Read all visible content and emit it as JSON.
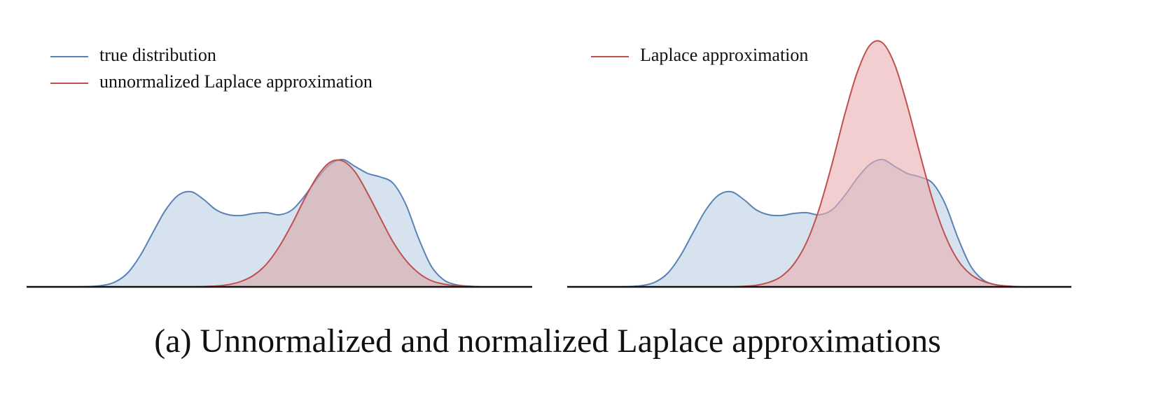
{
  "chart_data": [
    {
      "type": "area",
      "legend": "upper left",
      "x": [
        0,
        2.5,
        5,
        7.5,
        10,
        12.5,
        15,
        17.5,
        20,
        22.5,
        25,
        27.5,
        30,
        32.5,
        35,
        37.5,
        40,
        42.5,
        45,
        47.5,
        50,
        52.5,
        55,
        57.5,
        60,
        62.5,
        65,
        67.5,
        70,
        72.5,
        75,
        77.5,
        80,
        82.5,
        85,
        87.5,
        90,
        92.5,
        95,
        97.5,
        100
      ],
      "xlim": [
        0,
        100
      ],
      "ylim": [
        0,
        360
      ],
      "series": [
        {
          "name": "true distribution",
          "color": "#5a82b6",
          "fill": "#d6e3ee",
          "values": [
            0,
            0,
            0,
            0,
            0,
            0.5,
            2,
            7,
            20,
            45,
            78,
            110,
            131,
            136,
            125,
            110,
            103,
            102,
            105,
            106,
            103,
            110,
            130,
            155,
            175,
            182,
            172,
            162,
            157,
            148,
            118,
            70,
            30,
            10,
            3,
            1,
            0,
            0,
            0,
            0,
            0
          ]
        },
        {
          "name": "unnormalized Laplace approximation",
          "color": "#c0504d",
          "fill": "#d9a7a9",
          "values": [
            0,
            0,
            0,
            0,
            0,
            0,
            0,
            0,
            0,
            0,
            0,
            0,
            0,
            0,
            0.4,
            1.2,
            3.3,
            8,
            17,
            33,
            58,
            90,
            126,
            158,
            178,
            180,
            164,
            133,
            98,
            64,
            38,
            20,
            9,
            4,
            1.5,
            0.5,
            0,
            0,
            0,
            0,
            0
          ]
        }
      ]
    },
    {
      "type": "area",
      "legend": "upper left",
      "x": [
        0,
        2.5,
        5,
        7.5,
        10,
        12.5,
        15,
        17.5,
        20,
        22.5,
        25,
        27.5,
        30,
        32.5,
        35,
        37.5,
        40,
        42.5,
        45,
        47.5,
        50,
        52.5,
        55,
        57.5,
        60,
        62.5,
        65,
        67.5,
        70,
        72.5,
        75,
        77.5,
        80,
        82.5,
        85,
        87.5,
        90,
        92.5,
        95,
        97.5,
        100
      ],
      "xlim": [
        0,
        100
      ],
      "ylim": [
        0,
        360
      ],
      "series": [
        {
          "name": "true distribution",
          "color": "#5a82b6",
          "fill": "#d6e3ee",
          "legend": false,
          "values": [
            0,
            0,
            0,
            0,
            0,
            0.5,
            2,
            7,
            20,
            45,
            78,
            110,
            131,
            136,
            125,
            110,
            103,
            102,
            105,
            106,
            103,
            110,
            130,
            155,
            175,
            182,
            172,
            162,
            157,
            148,
            118,
            70,
            30,
            10,
            3,
            1,
            0,
            0,
            0,
            0,
            0
          ]
        },
        {
          "name": "Laplace approximation",
          "color": "#c0504d",
          "fill": "#e9aeb0",
          "values": [
            0,
            0,
            0,
            0,
            0,
            0,
            0,
            0,
            0,
            0,
            0,
            0,
            0,
            0,
            0.8,
            2.3,
            6.4,
            15,
            33,
            64,
            112,
            175,
            245,
            306,
            345,
            349,
            317,
            258,
            189,
            124,
            73,
            38,
            18,
            8,
            3,
            1,
            0,
            0,
            0,
            0,
            0
          ]
        }
      ]
    }
  ],
  "caption": "(a) Unnormalized and normalized Laplace approximations"
}
